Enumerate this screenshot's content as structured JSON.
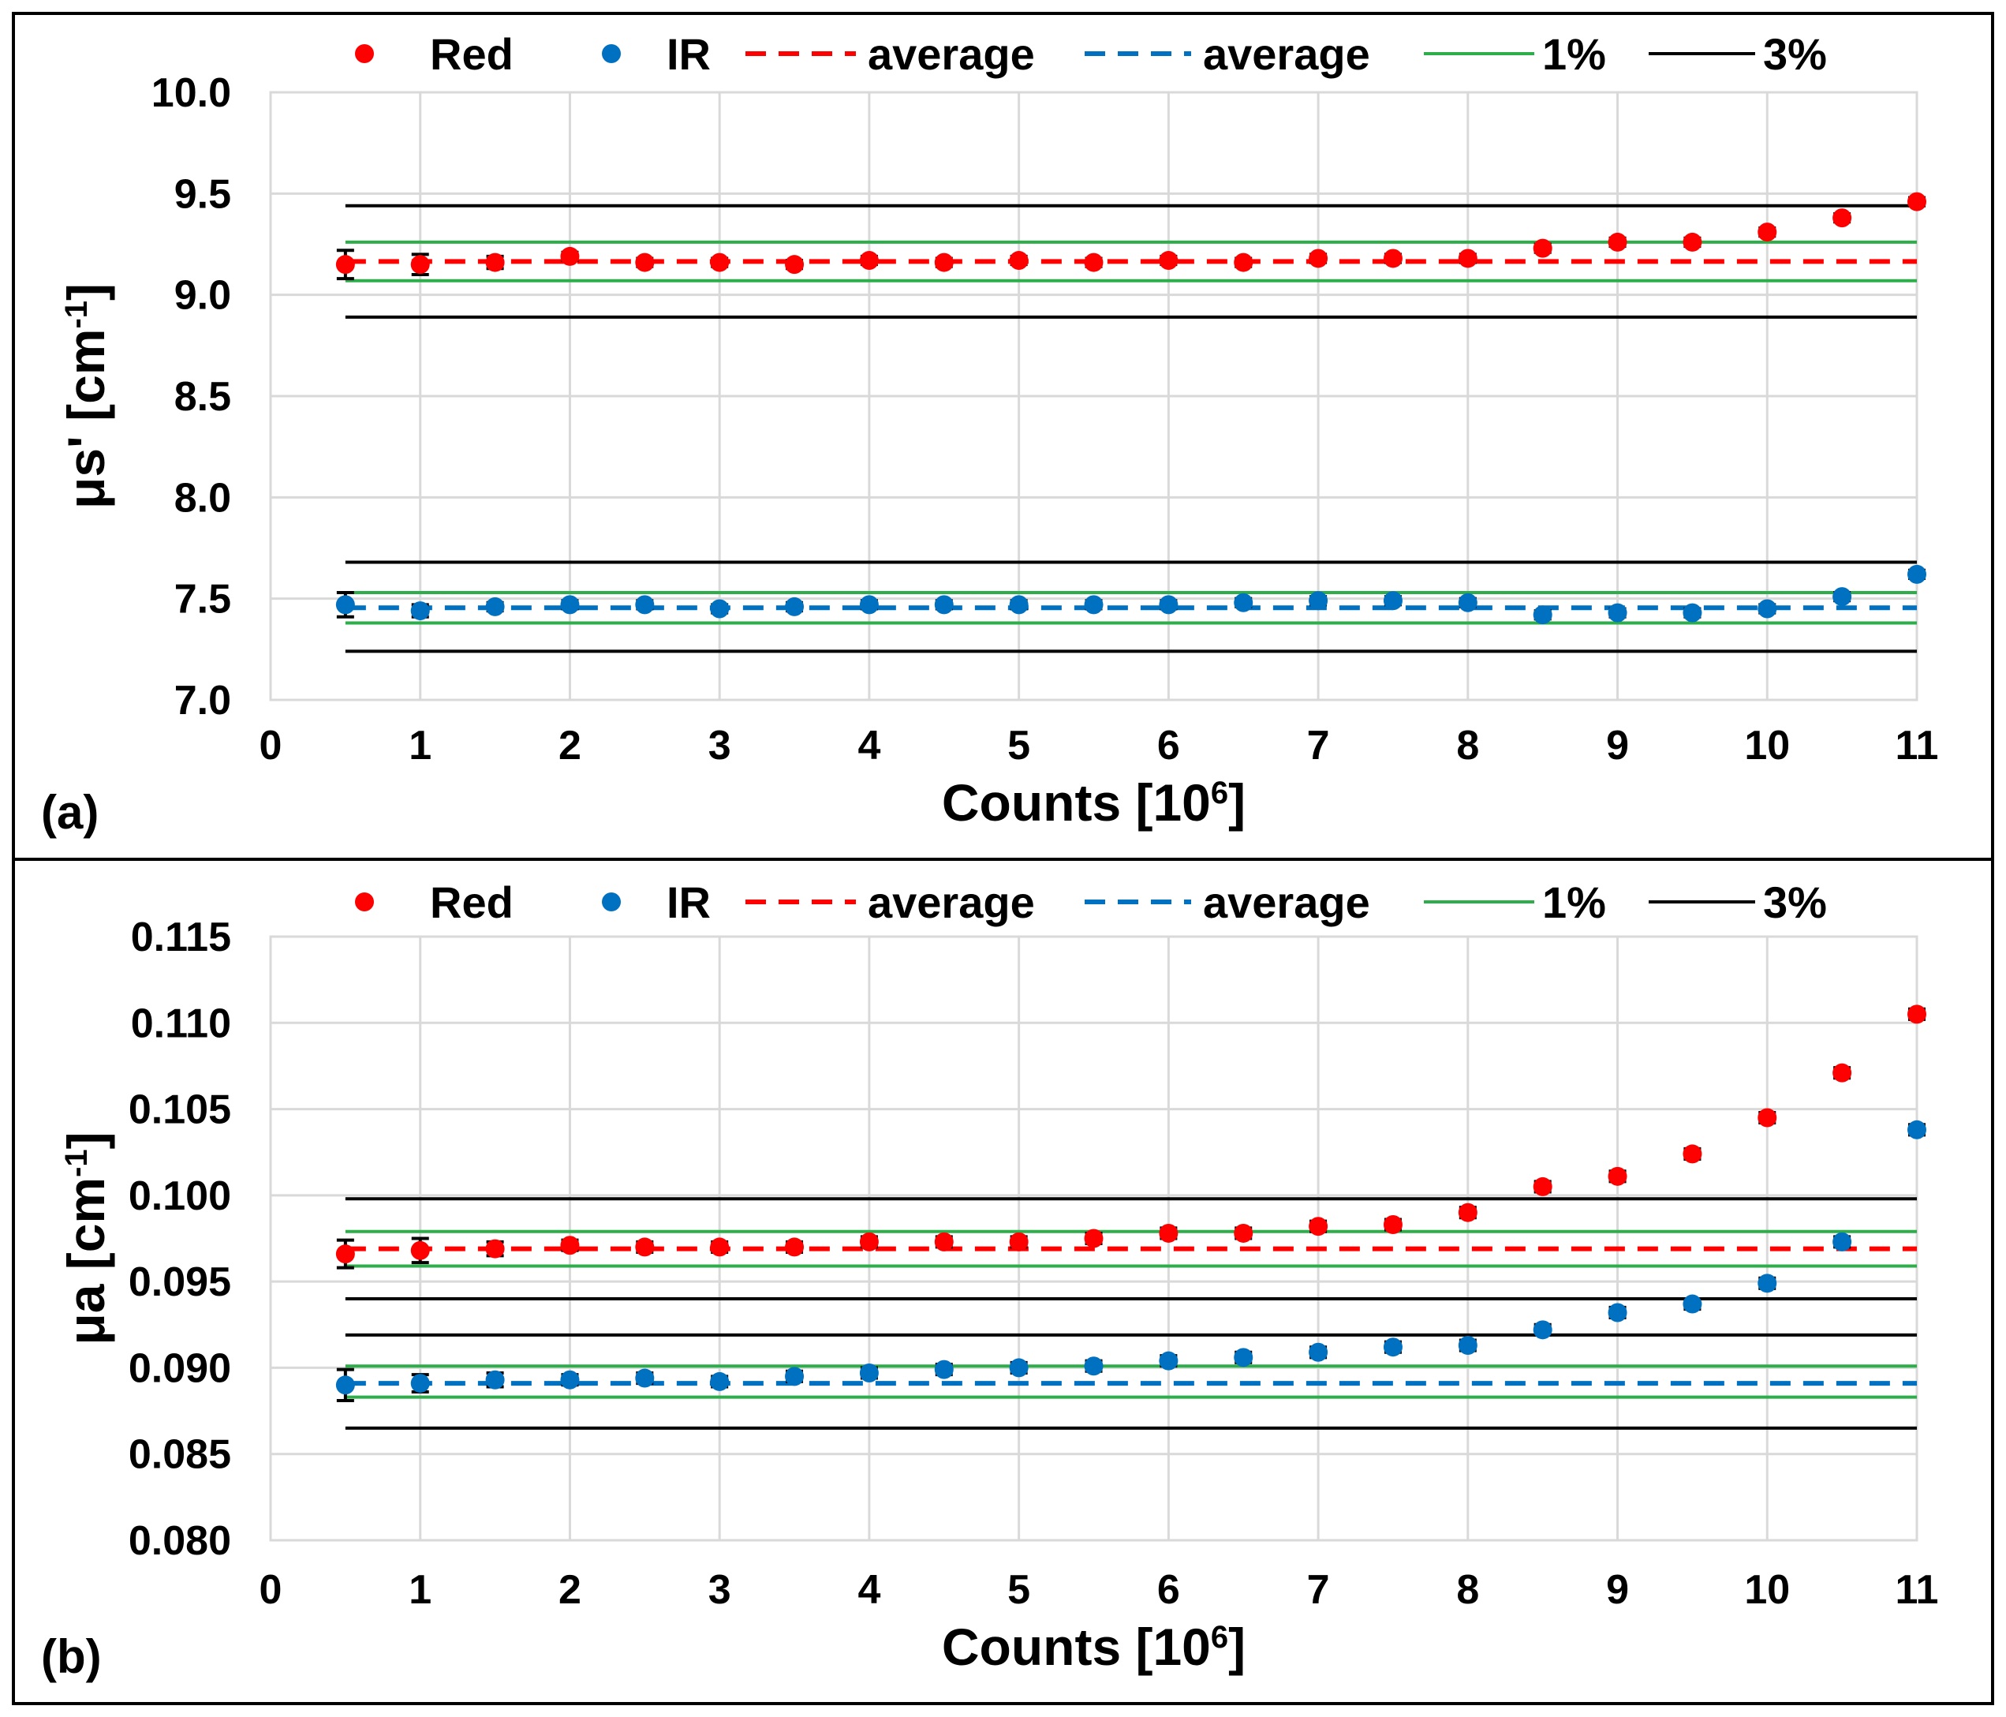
{
  "chart_data": [
    {
      "type": "scatter",
      "panel": "(a)",
      "title": "",
      "xlabel": "Counts [10",
      "xlabel_sup": "6",
      "xlabel_end": "]",
      "ylabel": "μs' [cm",
      "ylabel_sup": "-1",
      "ylabel_end": "]",
      "xlim": [
        0,
        11
      ],
      "ylim": [
        7.0,
        10.0
      ],
      "x_ticks": [
        "0",
        "1",
        "2",
        "3",
        "4",
        "5",
        "6",
        "7",
        "8",
        "9",
        "10",
        "11"
      ],
      "y_ticks": [
        "7.0",
        "7.5",
        "8.0",
        "8.5",
        "9.0",
        "9.5",
        "10.0"
      ],
      "grid": true,
      "legend": {
        "position": "top",
        "entries": [
          {
            "label": "Red",
            "style": "marker",
            "color": "#ff0000"
          },
          {
            "label": "IR",
            "style": "marker",
            "color": "#0070c0"
          },
          {
            "label": "average",
            "style": "dash",
            "color": "#ff0000"
          },
          {
            "label": "average",
            "style": "dash",
            "color": "#0070c0"
          },
          {
            "label": "1%",
            "style": "line",
            "color": "#2eae4a"
          },
          {
            "label": "3%",
            "style": "line",
            "color": "#000000"
          }
        ]
      },
      "series": [
        {
          "name": "Red",
          "color": "#ff0000",
          "x": [
            0.5,
            1,
            1.5,
            2,
            2.5,
            3,
            3.5,
            4,
            4.5,
            5,
            5.5,
            6,
            6.5,
            7,
            7.5,
            8,
            8.5,
            9,
            9.5,
            10,
            10.5,
            11
          ],
          "y": [
            9.15,
            9.15,
            9.16,
            9.19,
            9.16,
            9.16,
            9.15,
            9.17,
            9.16,
            9.17,
            9.16,
            9.17,
            9.16,
            9.18,
            9.18,
            9.18,
            9.23,
            9.26,
            9.26,
            9.31,
            9.38,
            9.46
          ],
          "err": [
            0.07,
            0.05,
            0.03,
            0.02,
            0.02,
            0.02,
            0.02,
            0.02,
            0.02,
            0.02,
            0.02,
            0.02,
            0.02,
            0.02,
            0.02,
            0.02,
            0.02,
            0.02,
            0.02,
            0.02,
            0.02,
            0.02
          ]
        },
        {
          "name": "IR",
          "color": "#0070c0",
          "x": [
            0.5,
            1,
            1.5,
            2,
            2.5,
            3,
            3.5,
            4,
            4.5,
            5,
            5.5,
            6,
            6.5,
            7,
            7.5,
            8,
            8.5,
            9,
            9.5,
            10,
            10.5,
            11
          ],
          "y": [
            7.47,
            7.44,
            7.46,
            7.47,
            7.47,
            7.45,
            7.46,
            7.47,
            7.47,
            7.47,
            7.47,
            7.47,
            7.48,
            7.49,
            7.49,
            7.48,
            7.42,
            7.43,
            7.43,
            7.45,
            7.51,
            7.62
          ],
          "err": [
            0.06,
            0.03,
            0.02,
            0.02,
            0.02,
            0.02,
            0.02,
            0.02,
            0.02,
            0.02,
            0.02,
            0.02,
            0.02,
            0.02,
            0.02,
            0.02,
            0.02,
            0.02,
            0.02,
            0.02,
            0.02,
            0.02
          ]
        }
      ],
      "reference_lines": [
        {
          "name": "Red average",
          "y": 9.165,
          "color": "#ff0000",
          "dash": true
        },
        {
          "name": "IR average",
          "y": 7.455,
          "color": "#0070c0",
          "dash": true
        },
        {
          "name": "Red +1%",
          "y": 9.26,
          "color": "#2eae4a",
          "dash": false
        },
        {
          "name": "Red -1%",
          "y": 9.07,
          "color": "#2eae4a",
          "dash": false
        },
        {
          "name": "Red +3%",
          "y": 9.44,
          "color": "#000000",
          "dash": false
        },
        {
          "name": "Red -3%",
          "y": 8.89,
          "color": "#000000",
          "dash": false
        },
        {
          "name": "IR +1%",
          "y": 7.53,
          "color": "#2eae4a",
          "dash": false
        },
        {
          "name": "IR -1%",
          "y": 7.38,
          "color": "#2eae4a",
          "dash": false
        },
        {
          "name": "IR +3%",
          "y": 7.68,
          "color": "#000000",
          "dash": false
        },
        {
          "name": "IR -3%",
          "y": 7.24,
          "color": "#000000",
          "dash": false
        }
      ],
      "reference_x_range": [
        0.5,
        11
      ]
    },
    {
      "type": "scatter",
      "panel": "(b)",
      "title": "",
      "xlabel": "Counts [10",
      "xlabel_sup": "6",
      "xlabel_end": "]",
      "ylabel": "μa [cm",
      "ylabel_sup": "-1",
      "ylabel_end": "]",
      "xlim": [
        0,
        11
      ],
      "ylim": [
        0.08,
        0.115
      ],
      "x_ticks": [
        "0",
        "1",
        "2",
        "3",
        "4",
        "5",
        "6",
        "7",
        "8",
        "9",
        "10",
        "11"
      ],
      "y_ticks": [
        "0.080",
        "0.085",
        "0.090",
        "0.095",
        "0.100",
        "0.105",
        "0.110",
        "0.115"
      ],
      "grid": true,
      "legend": {
        "position": "top",
        "entries": [
          {
            "label": "Red",
            "style": "marker",
            "color": "#ff0000"
          },
          {
            "label": "IR",
            "style": "marker",
            "color": "#0070c0"
          },
          {
            "label": "average",
            "style": "dash",
            "color": "#ff0000"
          },
          {
            "label": "average",
            "style": "dash",
            "color": "#0070c0"
          },
          {
            "label": "1%",
            "style": "line",
            "color": "#2eae4a"
          },
          {
            "label": "3%",
            "style": "line",
            "color": "#000000"
          }
        ]
      },
      "series": [
        {
          "name": "Red",
          "color": "#ff0000",
          "x": [
            0.5,
            1,
            1.5,
            2,
            2.5,
            3,
            3.5,
            4,
            4.5,
            5,
            5.5,
            6,
            6.5,
            7,
            7.5,
            8,
            8.5,
            9,
            9.5,
            10,
            10.5,
            11
          ],
          "y": [
            0.0966,
            0.0968,
            0.0969,
            0.0971,
            0.097,
            0.097,
            0.097,
            0.0973,
            0.0973,
            0.0973,
            0.0975,
            0.0978,
            0.0978,
            0.0982,
            0.0983,
            0.099,
            0.1005,
            0.1011,
            0.1024,
            0.1045,
            0.1071,
            0.1105
          ],
          "err": [
            0.0008,
            0.0007,
            0.0004,
            0.0003,
            0.0003,
            0.0003,
            0.0003,
            0.0003,
            0.0003,
            0.0003,
            0.0003,
            0.0003,
            0.0003,
            0.0003,
            0.0003,
            0.0003,
            0.0003,
            0.0003,
            0.0003,
            0.0003,
            0.0003,
            0.0003
          ]
        },
        {
          "name": "IR",
          "color": "#0070c0",
          "x": [
            0.5,
            1,
            1.5,
            2,
            2.5,
            3,
            3.5,
            4,
            4.5,
            5,
            5.5,
            6,
            6.5,
            7,
            7.5,
            8,
            8.5,
            9,
            9.5,
            10,
            10.5,
            11
          ],
          "y": [
            0.089,
            0.0891,
            0.0893,
            0.0893,
            0.0894,
            0.0892,
            0.0895,
            0.0897,
            0.0899,
            0.09,
            0.0901,
            0.0904,
            0.0906,
            0.0909,
            0.0912,
            0.0913,
            0.0922,
            0.0932,
            0.0937,
            0.0949,
            0.0973,
            0.1038
          ],
          "err": [
            0.0009,
            0.0005,
            0.0004,
            0.0003,
            0.0003,
            0.0003,
            0.0003,
            0.0003,
            0.0003,
            0.0003,
            0.0003,
            0.0003,
            0.0003,
            0.0003,
            0.0003,
            0.0003,
            0.0003,
            0.0003,
            0.0003,
            0.0003,
            0.0003,
            0.0003
          ]
        }
      ],
      "reference_lines": [
        {
          "name": "Red average",
          "y": 0.0969,
          "color": "#ff0000",
          "dash": true
        },
        {
          "name": "IR average",
          "y": 0.0891,
          "color": "#0070c0",
          "dash": true
        },
        {
          "name": "Red +1%",
          "y": 0.0979,
          "color": "#2eae4a",
          "dash": false
        },
        {
          "name": "Red -1%",
          "y": 0.0959,
          "color": "#2eae4a",
          "dash": false
        },
        {
          "name": "Red +3%",
          "y": 0.0998,
          "color": "#000000",
          "dash": false
        },
        {
          "name": "Red -3%",
          "y": 0.094,
          "color": "#000000",
          "dash": false
        },
        {
          "name": "IR +1%",
          "y": 0.0901,
          "color": "#2eae4a",
          "dash": false
        },
        {
          "name": "IR -1%",
          "y": 0.0883,
          "color": "#2eae4a",
          "dash": false
        },
        {
          "name": "IR +3%",
          "y": 0.0919,
          "color": "#000000",
          "dash": false
        },
        {
          "name": "IR -3%",
          "y": 0.0865,
          "color": "#000000",
          "dash": false
        }
      ],
      "reference_x_range": [
        0.5,
        11
      ]
    }
  ]
}
